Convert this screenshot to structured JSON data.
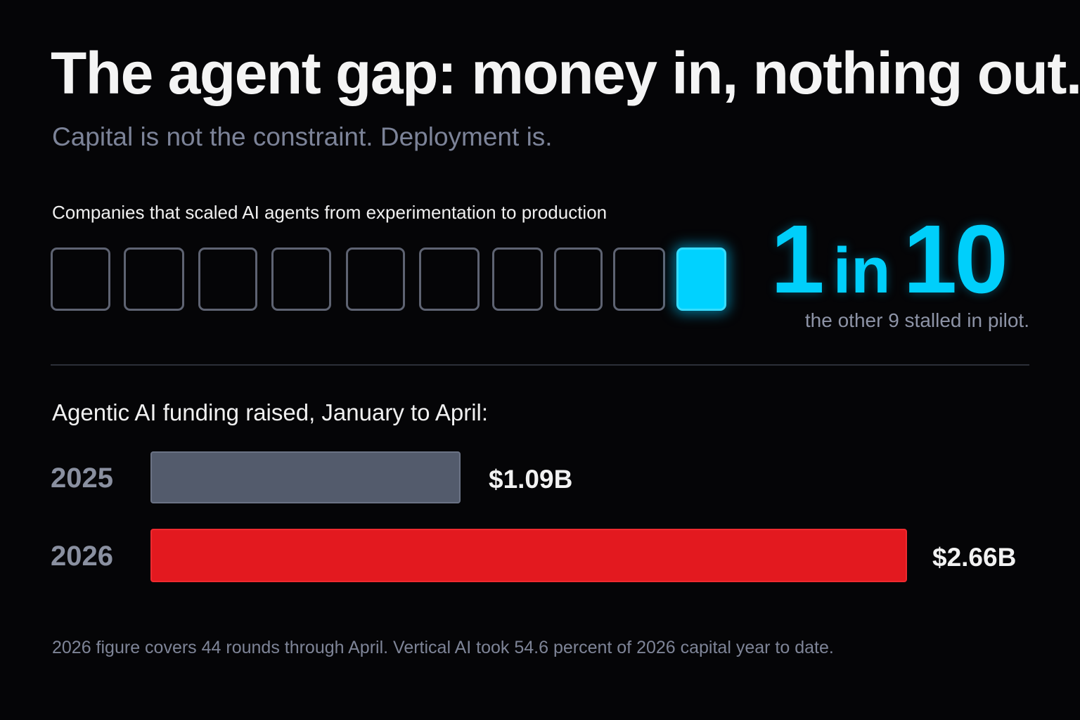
{
  "title": "The agent gap: money in, nothing out.",
  "subtitle": "Capital is not the constraint. Deployment is.",
  "waffle": {
    "label": "Companies that scaled AI agents from experimentation to production",
    "total": 10,
    "filled": 1,
    "stat_num": "1",
    "stat_in": "in",
    "stat_den": "10",
    "note": "the other 9 stalled in pilot."
  },
  "chart_data": {
    "type": "bar",
    "orientation": "horizontal",
    "title": "Agentic AI funding raised, January to April:",
    "categories": [
      "2025",
      "2026"
    ],
    "values": [
      1.09,
      2.66
    ],
    "value_labels": [
      "$1.09B",
      "$2.66B"
    ],
    "colors": [
      "#535b6c",
      "#e3191f"
    ]
  },
  "footnote": "2026 figure covers 44 rounds through April. Vertical AI took 54.6 percent of 2026 capital year to date.",
  "colors": {
    "background": "#050507",
    "accent": "#00d2ff",
    "highlight": "#e3191f",
    "muted": "#535b6c"
  }
}
